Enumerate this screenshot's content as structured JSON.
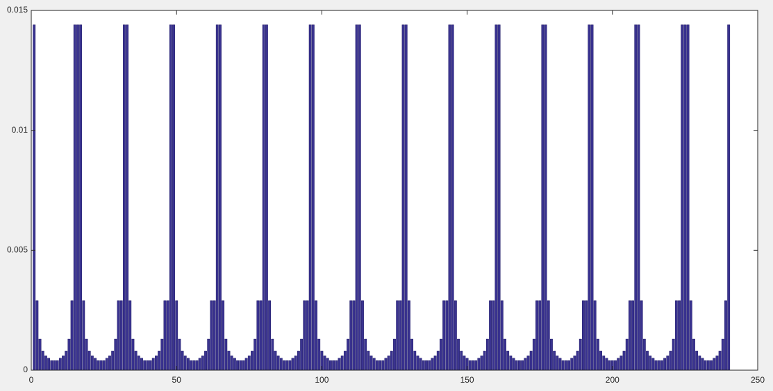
{
  "chart_data": {
    "type": "bar",
    "title": "",
    "xlabel": "",
    "ylabel": "",
    "xlim": [
      0,
      250
    ],
    "ylim": [
      0,
      0.015
    ],
    "xticks": [
      0,
      50,
      100,
      150,
      200,
      250
    ],
    "yticks": [
      0,
      0.005,
      0.01,
      0.015
    ],
    "xtick_labels": [
      "0",
      "50",
      "100",
      "150",
      "200",
      "250"
    ],
    "ytick_labels": [
      "0",
      "0.005",
      "0.01",
      "0.015"
    ],
    "grid": false,
    "bar_color": "#3a3390",
    "bar_edge_color": "#1f1a66",
    "x": [
      1,
      2,
      3,
      4,
      5,
      6,
      7,
      8,
      9,
      10,
      11,
      12,
      13,
      14,
      15,
      16,
      17,
      18,
      19,
      20,
      21,
      22,
      23,
      24,
      25,
      26,
      27,
      28,
      29,
      30,
      31,
      32,
      33,
      34,
      35,
      36,
      37,
      38,
      39,
      40,
      41,
      42,
      43,
      44,
      45,
      46,
      47,
      48,
      49,
      50,
      51,
      52,
      53,
      54,
      55,
      56,
      57,
      58,
      59,
      60,
      61,
      62,
      63,
      64,
      65,
      66,
      67,
      68,
      69,
      70,
      71,
      72,
      73,
      74,
      75,
      76,
      77,
      78,
      79,
      80,
      81,
      82,
      83,
      84,
      85,
      86,
      87,
      88,
      89,
      90,
      91,
      92,
      93,
      94,
      95,
      96,
      97,
      98,
      99,
      100,
      101,
      102,
      103,
      104,
      105,
      106,
      107,
      108,
      109,
      110,
      111,
      112,
      113,
      114,
      115,
      116,
      117,
      118,
      119,
      120,
      121,
      122,
      123,
      124,
      125,
      126,
      127,
      128,
      129,
      130,
      131,
      132,
      133,
      134,
      135,
      136,
      137,
      138,
      139,
      140,
      141,
      142,
      143,
      144,
      145,
      146,
      147,
      148,
      149,
      150,
      151,
      152,
      153,
      154,
      155,
      156,
      157,
      158,
      159,
      160,
      161,
      162,
      163,
      164,
      165,
      166,
      167,
      168,
      169,
      170,
      171,
      172,
      173,
      174,
      175,
      176,
      177,
      178,
      179,
      180,
      181,
      182,
      183,
      184,
      185,
      186,
      187,
      188,
      189,
      190,
      191,
      192,
      193,
      194,
      195,
      196,
      197,
      198,
      199,
      200,
      201,
      202,
      203,
      204,
      205,
      206,
      207,
      208,
      209,
      210,
      211,
      212,
      213,
      214,
      215,
      216,
      217,
      218,
      219,
      220,
      221,
      222,
      223,
      224,
      225,
      226,
      227,
      228,
      229,
      230,
      231,
      232,
      233,
      234,
      235,
      236,
      237,
      238,
      239,
      240
    ],
    "values": [
      0.0144,
      0.0029,
      0.0013,
      0.0008,
      0.0006,
      0.0005,
      0.0004,
      0.0004,
      0.0004,
      0.0005,
      0.0006,
      0.0008,
      0.0013,
      0.0029,
      0.0144,
      0.0144,
      0.0144,
      0.0029,
      0.0013,
      0.0008,
      0.0006,
      0.0005,
      0.0004,
      0.0004,
      0.0004,
      0.0005,
      0.0006,
      0.0008,
      0.0013,
      0.0029,
      0.0029,
      0.0144,
      0.0144,
      0.0029,
      0.0013,
      0.0008,
      0.0006,
      0.0005,
      0.0004,
      0.0004,
      0.0004,
      0.0005,
      0.0006,
      0.0008,
      0.0013,
      0.0029,
      0.0029,
      0.0144,
      0.0144,
      0.0029,
      0.0013,
      0.0008,
      0.0006,
      0.0005,
      0.0004,
      0.0004,
      0.0004,
      0.0005,
      0.0006,
      0.0008,
      0.0013,
      0.0029,
      0.0029,
      0.0144,
      0.0144,
      0.0029,
      0.0013,
      0.0008,
      0.0006,
      0.0005,
      0.0004,
      0.0004,
      0.0004,
      0.0005,
      0.0006,
      0.0008,
      0.0013,
      0.0029,
      0.0029,
      0.0144,
      0.0144,
      0.0029,
      0.0013,
      0.0008,
      0.0006,
      0.0005,
      0.0004,
      0.0004,
      0.0004,
      0.0005,
      0.0006,
      0.0008,
      0.0013,
      0.0029,
      0.0029,
      0.0144,
      0.0144,
      0.0029,
      0.0013,
      0.0008,
      0.0006,
      0.0005,
      0.0004,
      0.0004,
      0.0004,
      0.0005,
      0.0006,
      0.0008,
      0.0013,
      0.0029,
      0.0029,
      0.0144,
      0.0144,
      0.0029,
      0.0013,
      0.0008,
      0.0006,
      0.0005,
      0.0004,
      0.0004,
      0.0004,
      0.0005,
      0.0006,
      0.0008,
      0.0013,
      0.0029,
      0.0029,
      0.0144,
      0.0144,
      0.0029,
      0.0013,
      0.0008,
      0.0006,
      0.0005,
      0.0004,
      0.0004,
      0.0004,
      0.0005,
      0.0006,
      0.0008,
      0.0013,
      0.0029,
      0.0029,
      0.0144,
      0.0144,
      0.0029,
      0.0013,
      0.0008,
      0.0006,
      0.0005,
      0.0004,
      0.0004,
      0.0004,
      0.0005,
      0.0006,
      0.0008,
      0.0013,
      0.0029,
      0.0029,
      0.0144,
      0.0144,
      0.0029,
      0.0013,
      0.0008,
      0.0006,
      0.0005,
      0.0004,
      0.0004,
      0.0004,
      0.0005,
      0.0006,
      0.0008,
      0.0013,
      0.0029,
      0.0029,
      0.0144,
      0.0144,
      0.0029,
      0.0013,
      0.0008,
      0.0006,
      0.0005,
      0.0004,
      0.0004,
      0.0004,
      0.0005,
      0.0006,
      0.0008,
      0.0013,
      0.0029,
      0.0029,
      0.0144,
      0.0144,
      0.0029,
      0.0013,
      0.0008,
      0.0006,
      0.0005,
      0.0004,
      0.0004,
      0.0004,
      0.0005,
      0.0006,
      0.0008,
      0.0013,
      0.0029,
      0.0029,
      0.0144,
      0.0144,
      0.0029,
      0.0013,
      0.0008,
      0.0006,
      0.0005,
      0.0004,
      0.0004,
      0.0004,
      0.0005,
      0.0006,
      0.0008,
      0.0013,
      0.0029,
      0.0029,
      0.0144,
      0.0144,
      0.0144,
      0.0029,
      0.0013,
      0.0008,
      0.0006,
      0.0005,
      0.0004,
      0.0004,
      0.0004,
      0.0005,
      0.0006,
      0.0008,
      0.0013,
      0.0029,
      0.0144
    ]
  }
}
